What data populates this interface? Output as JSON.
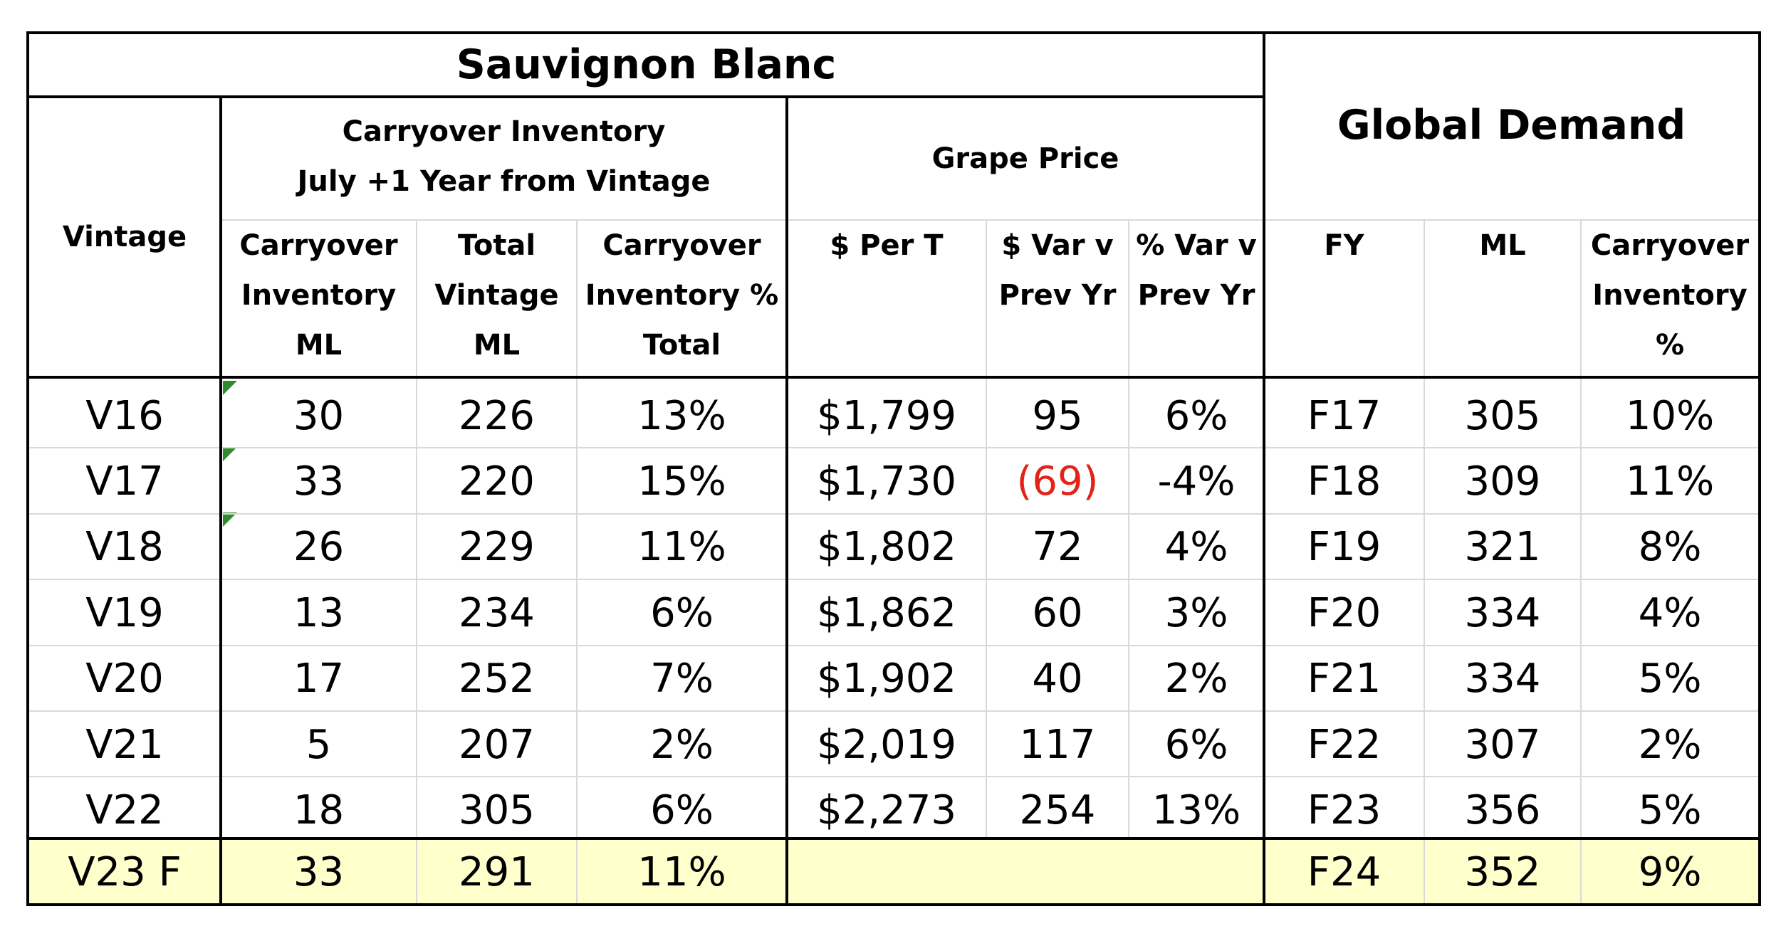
{
  "title": "Sauvignon Blanc",
  "global_title": "Global Demand",
  "group_headers": {
    "carryover": "Carryover Inventory\nJuly +1 Year from Vintage",
    "grape_price": "Grape Price"
  },
  "columns": {
    "vintage": "Vintage",
    "carryover_ml": "Carryover\nInventory\nML",
    "total_vintage_ml": "Total\nVintage\nML",
    "carryover_pct_total": "Carryover\nInventory %\nTotal",
    "per_t": "$ Per T",
    "var_prev": "$ Var v\nPrev Yr",
    "pct_var_prev": "% Var v\nPrev Yr",
    "fy": "FY",
    "ml": "ML",
    "carryover_pct": "Carryover\nInventory\n%"
  },
  "rows": [
    {
      "vintage": "V16",
      "carryover_ml": "30",
      "total_ml": "226",
      "carry_pct": "13%",
      "per_t": "$1,799",
      "var": "95",
      "var_pct": "6%",
      "fy": "F17",
      "ml": "305",
      "inv_pct": "10%"
    },
    {
      "vintage": "V17",
      "carryover_ml": "33",
      "total_ml": "220",
      "carry_pct": "15%",
      "per_t": "$1,730",
      "var": "(69)",
      "var_pct": "-4%",
      "fy": "F18",
      "ml": "309",
      "inv_pct": "11%"
    },
    {
      "vintage": "V18",
      "carryover_ml": "26",
      "total_ml": "229",
      "carry_pct": "11%",
      "per_t": "$1,802",
      "var": "72",
      "var_pct": "4%",
      "fy": "F19",
      "ml": "321",
      "inv_pct": "8%"
    },
    {
      "vintage": "V19",
      "carryover_ml": "13",
      "total_ml": "234",
      "carry_pct": "6%",
      "per_t": "$1,862",
      "var": "60",
      "var_pct": "3%",
      "fy": "F20",
      "ml": "334",
      "inv_pct": "4%"
    },
    {
      "vintage": "V20",
      "carryover_ml": "17",
      "total_ml": "252",
      "carry_pct": "7%",
      "per_t": "$1,902",
      "var": "40",
      "var_pct": "2%",
      "fy": "F21",
      "ml": "334",
      "inv_pct": "5%"
    },
    {
      "vintage": "V21",
      "carryover_ml": "5",
      "total_ml": "207",
      "carry_pct": "2%",
      "per_t": "$2,019",
      "var": "117",
      "var_pct": "6%",
      "fy": "F22",
      "ml": "307",
      "inv_pct": "2%"
    },
    {
      "vintage": "V22",
      "carryover_ml": "18",
      "total_ml": "305",
      "carry_pct": "6%",
      "per_t": "$2,273",
      "var": "254",
      "var_pct": "13%",
      "fy": "F23",
      "ml": "356",
      "inv_pct": "5%"
    }
  ],
  "forecast_row": {
    "vintage": "V23 F",
    "carryover_ml": "33",
    "total_ml": "291",
    "carry_pct": "11%",
    "per_t": "",
    "var": "",
    "var_pct": "",
    "fy": "F24",
    "ml": "352",
    "inv_pct": "9%"
  },
  "colors": {
    "highlight": "#ffffcc",
    "negative": "#e2231a",
    "comment_marker": "#2e8b2e",
    "gridline": "#d9d9d9"
  }
}
